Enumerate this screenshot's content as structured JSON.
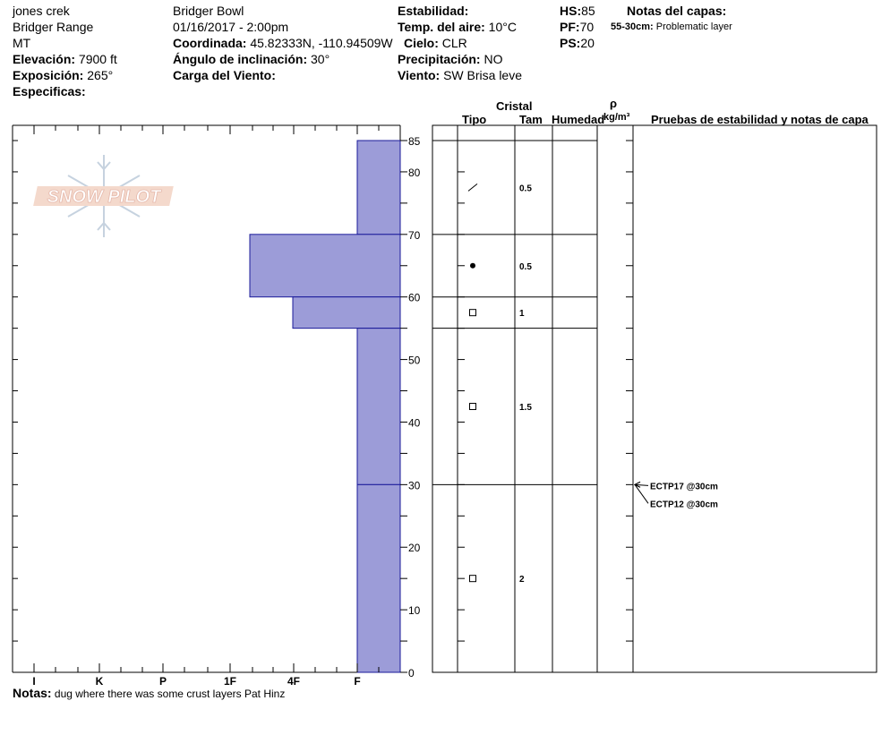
{
  "header": {
    "location": "jones crek",
    "range": "Bridger Range",
    "state": "MT",
    "elevation_label": "Elevación:",
    "elevation": "7900 ft",
    "aspect_label": "Exposición:",
    "aspect": "265°",
    "specifics_label": "Especificas:",
    "area": "Bridger Bowl",
    "datetime": "01/16/2017 - 2:00pm",
    "coord_label": "Coordinada:",
    "coord": "45.82333N, -110.94509W",
    "slope_label": "Ángulo de inclinación:",
    "slope": "30°",
    "wind_load_label": "Carga del Viento:",
    "stability_label": "Estabilidad:",
    "air_temp_label": "Temp. del aire:",
    "air_temp": "10°C",
    "sky_label": "Cielo:",
    "sky": "CLR",
    "precip_label": "Precipitación:",
    "precip": "NO",
    "wind_label": "Viento:",
    "wind": "SW  Brisa leve",
    "hs_label": "HS:",
    "hs": "85",
    "pf_label": "PF:",
    "pf": "70",
    "ps_label": "PS:",
    "ps": "20",
    "layer_notes_label": "Notas del capas:",
    "layer_note_range": "55-30cm:",
    "layer_note_text": "Problematic layer"
  },
  "logo": {
    "text": "SNOW PILOT"
  },
  "columns": {
    "crystal": "Cristal",
    "type": "Tipo",
    "size": "Tam",
    "moisture": "Humedad",
    "rho": "ρ",
    "density_unit": "kg/m³",
    "tests": "Pruebas de estabilidad y notas de capa"
  },
  "notes_label": "Notas:",
  "notes": "dug where there was some crust layers Pat Hinz",
  "colors": {
    "hardness_fill": "#9c9cd8",
    "hardness_stroke": "#1a1a9a"
  },
  "chart_data": {
    "type": "bar",
    "orientation": "horizontal",
    "ylim": [
      0,
      85
    ],
    "y_ticks": [
      0,
      10,
      20,
      30,
      40,
      50,
      60,
      70,
      80,
      85
    ],
    "hardness_scale": [
      "I",
      "K",
      "P",
      "1F",
      "4F",
      "F"
    ],
    "layers": [
      {
        "top": 85,
        "bottom": 70,
        "hardness": "F",
        "grain": "decomposing",
        "size": "0.5"
      },
      {
        "top": 70,
        "bottom": 60,
        "hardness": "1F-4F",
        "grain": "graupel",
        "size": "0.5"
      },
      {
        "top": 60,
        "bottom": 55,
        "hardness": "4F-F",
        "grain": "faceted",
        "size": "1"
      },
      {
        "top": 55,
        "bottom": 30,
        "hardness": "F",
        "grain": "faceted",
        "size": "1.5"
      },
      {
        "top": 30,
        "bottom": 0,
        "hardness": "F",
        "grain": "faceted",
        "size": "2"
      }
    ],
    "tests": [
      {
        "label": "ECTP17 @30cm",
        "depth": 30
      },
      {
        "label": "ECTP12 @30cm",
        "depth": 30
      }
    ]
  }
}
